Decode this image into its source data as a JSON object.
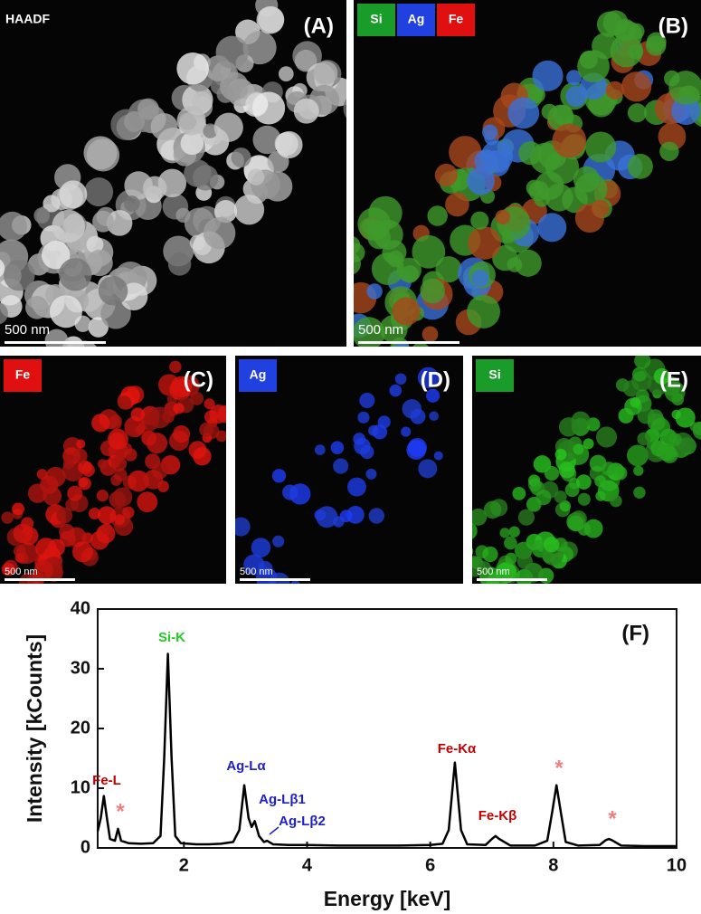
{
  "panels": [
    {
      "label": "(A)",
      "tags": [
        "HAADF"
      ],
      "scale": "500 nm"
    },
    {
      "label": "(B)",
      "tags": [
        "Si",
        "Ag",
        "Fe"
      ],
      "scale": "500 nm"
    },
    {
      "label": "(C)",
      "tags": [
        "Fe"
      ],
      "scale": "500 nm"
    },
    {
      "label": "(D)",
      "tags": [
        "Ag"
      ],
      "scale": "500 nm"
    },
    {
      "label": "(E)",
      "tags": [
        "Si"
      ],
      "scale": "500 nm"
    }
  ],
  "chart_data": {
    "type": "line",
    "panel_label": "(F)",
    "x_label": "Energy [keV]",
    "y_label": "Intensity [kCounts]",
    "xlim": [
      0.6,
      10
    ],
    "ylim": [
      0,
      40
    ],
    "xticks": [
      2,
      4,
      6,
      8,
      10
    ],
    "yticks": [
      0,
      10,
      20,
      30,
      40
    ],
    "x": [
      0.6,
      0.65,
      0.7,
      0.75,
      0.8,
      0.88,
      0.93,
      0.98,
      1.1,
      1.3,
      1.5,
      1.62,
      1.68,
      1.74,
      1.8,
      1.86,
      1.95,
      2.2,
      2.4,
      2.6,
      2.8,
      2.9,
      2.98,
      3.05,
      3.1,
      3.15,
      3.22,
      3.3,
      3.35,
      3.45,
      3.7,
      4,
      4.5,
      5,
      5.5,
      6,
      6.2,
      6.3,
      6.4,
      6.5,
      6.6,
      6.9,
      7.0,
      7.06,
      7.12,
      7.3,
      7.7,
      7.9,
      7.98,
      8.05,
      8.12,
      8.2,
      8.4,
      8.75,
      8.85,
      8.9,
      8.95,
      9.1,
      9.5,
      10
    ],
    "series": [
      {
        "color": "#000000",
        "values": [
          2.8,
          5,
          8.7,
          5,
          1.5,
          1.2,
          3.2,
          1.2,
          0.8,
          0.7,
          0.8,
          2,
          15,
          32.5,
          15,
          2,
          0.8,
          0.6,
          0.6,
          0.7,
          1.0,
          3,
          10.5,
          5,
          3.5,
          4.5,
          2,
          1.0,
          1.2,
          0.6,
          0.5,
          0.5,
          0.4,
          0.4,
          0.4,
          0.5,
          0.7,
          3,
          14.3,
          3,
          0.6,
          0.5,
          1.5,
          2.0,
          1.5,
          0.4,
          0.4,
          1.2,
          6,
          10.5,
          6,
          1,
          0.4,
          0.5,
          1.3,
          1.5,
          1.3,
          0.4,
          0.3,
          0.3
        ]
      }
    ],
    "annotations": [
      {
        "text": "Fe-L",
        "color": "#c00000"
      },
      {
        "text": "*",
        "color": "#f08080"
      },
      {
        "text": "Si-K",
        "color": "#22cc22"
      },
      {
        "text": "Ag-Lα",
        "color": "#1f1fc8"
      },
      {
        "text": "Ag-Lβ1",
        "color": "#1f1fc8"
      },
      {
        "text": "Ag-Lβ2",
        "color": "#1f1fc8"
      },
      {
        "text": "Fe-Kα",
        "color": "#c00000"
      },
      {
        "text": "Fe-Kβ",
        "color": "#c00000"
      },
      {
        "text": "*",
        "color": "#f08080"
      },
      {
        "text": "*",
        "color": "#f08080"
      }
    ]
  }
}
